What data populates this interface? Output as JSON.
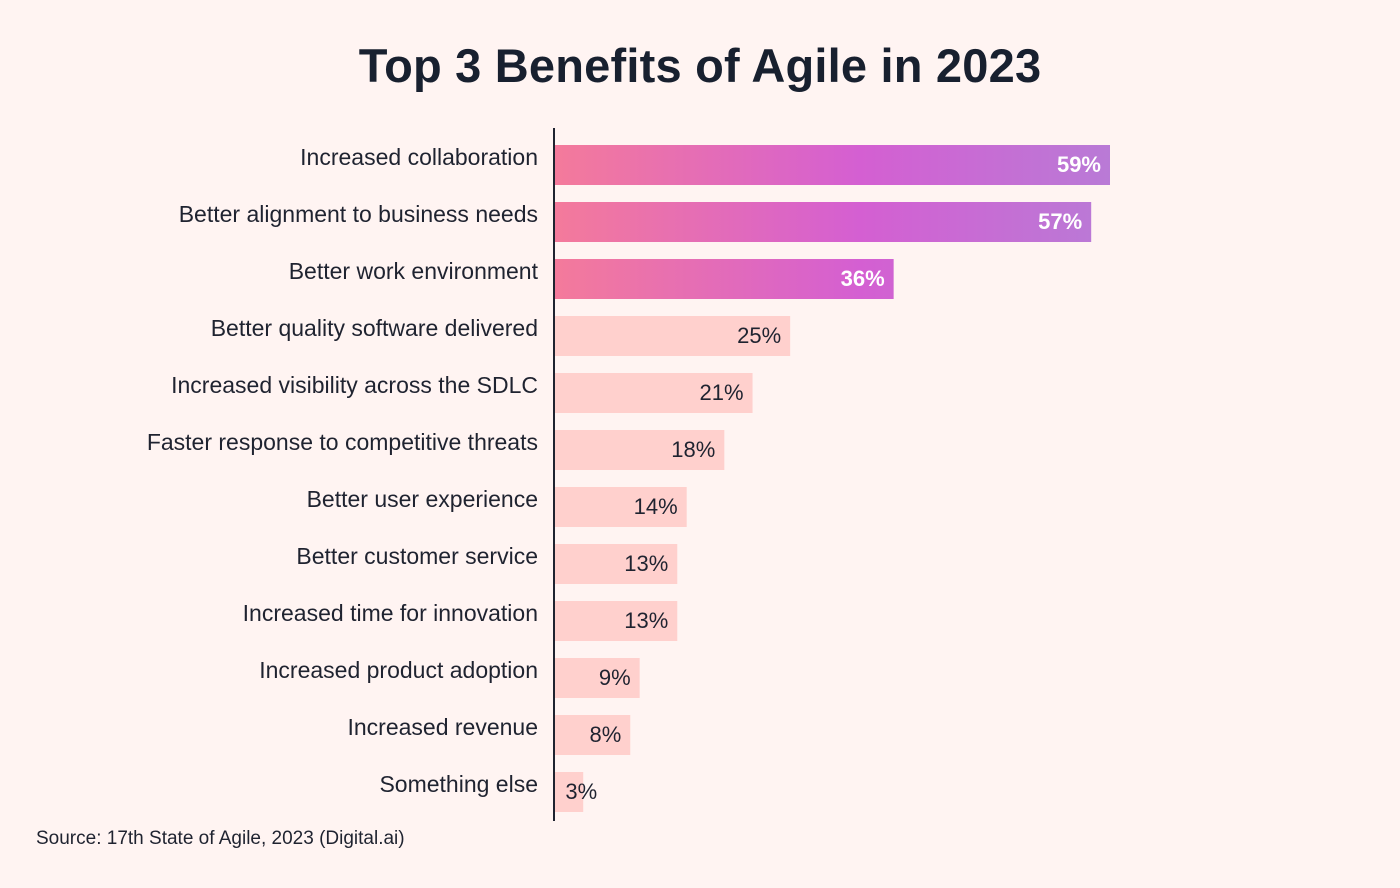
{
  "chart_data": {
    "type": "bar",
    "orientation": "horizontal",
    "title": "Top 3 Benefits of Agile in 2023",
    "categories": [
      "Increased collaboration",
      "Better alignment to business needs",
      "Better work environment",
      "Better quality software delivered",
      "Increased visibility across the SDLC",
      "Faster response to competitive threats",
      "Better user experience",
      "Better customer service",
      "Increased time for innovation",
      "Increased product adoption",
      "Increased revenue",
      "Something else"
    ],
    "values": [
      59,
      57,
      36,
      25,
      21,
      18,
      14,
      13,
      13,
      9,
      8,
      3
    ],
    "value_labels": [
      "59%",
      "57%",
      "36%",
      "25%",
      "21%",
      "18%",
      "14%",
      "13%",
      "13%",
      "9%",
      "8%",
      "3%"
    ],
    "highlighted_count": 3,
    "xlim": [
      0,
      59
    ],
    "xlabel": "",
    "ylabel": "",
    "grid": false,
    "colors": {
      "highlight_gradient": [
        "#f47a9b",
        "#d45fd2",
        "#b97ad6"
      ],
      "rest_bar": "#ffd0cd",
      "axis": "#1f2330",
      "background": "#fff4f2"
    }
  },
  "source": "Source: 17th State of Agile, 2023 (Digital.ai)"
}
